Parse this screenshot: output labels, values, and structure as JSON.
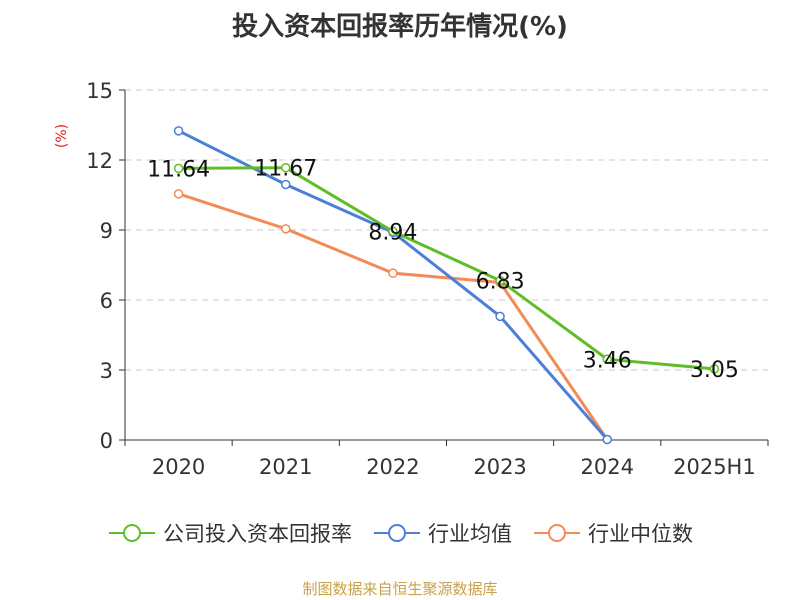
{
  "chart_data": {
    "type": "line",
    "title": "投入资本回报率历年情况(%)",
    "ylabel": "(%)",
    "categories": [
      "2020",
      "2021",
      "2022",
      "2023",
      "2024",
      "2025H1"
    ],
    "ylim": [
      0,
      15
    ],
    "yticks": [
      0,
      3,
      6,
      9,
      12,
      15
    ],
    "grid": true,
    "legend_position": "bottom",
    "series": [
      {
        "name": "公司投入资本回报率",
        "color": "#5fbe28",
        "values": [
          11.64,
          11.67,
          8.94,
          6.83,
          3.46,
          3.05
        ],
        "labels": [
          "11.64",
          "11.67",
          "8.94",
          "6.83",
          "3.46",
          "3.05"
        ]
      },
      {
        "name": "行业均值",
        "color": "#4c7fd8",
        "values": [
          13.25,
          10.95,
          8.9,
          5.3,
          0.02,
          null
        ]
      },
      {
        "name": "行业中位数",
        "color": "#f48b57",
        "values": [
          10.55,
          9.05,
          7.15,
          6.75,
          0.02,
          null
        ]
      }
    ],
    "source": "制图数据来自恒生聚源数据库"
  }
}
